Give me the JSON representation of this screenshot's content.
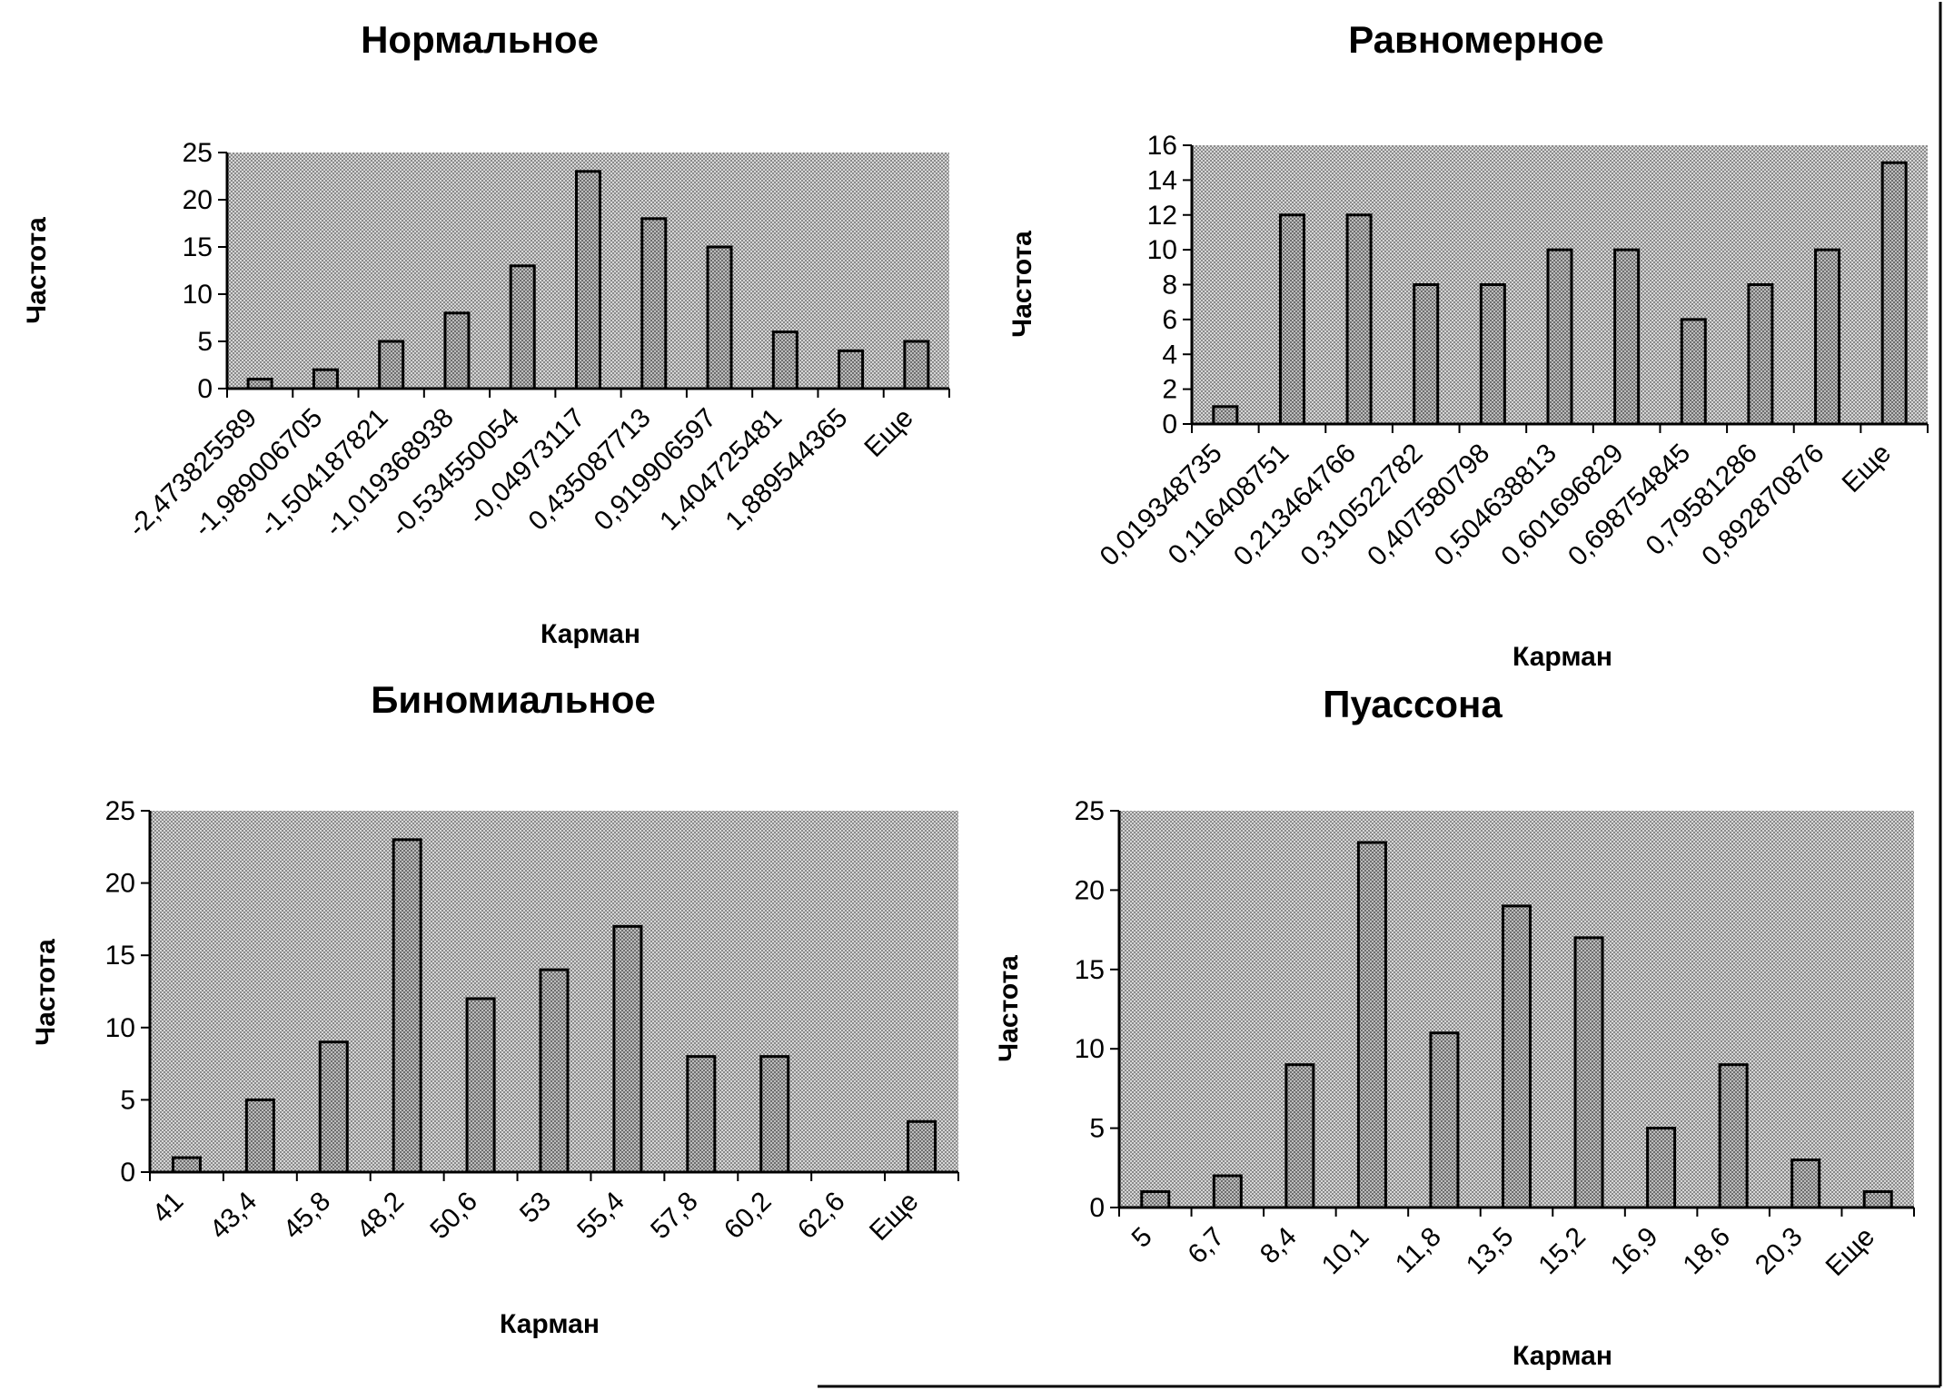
{
  "colors": {
    "plot_bg": "#c9c9c9",
    "bar_fill": "#a9a9a9",
    "stroke": "#000000"
  },
  "chart_data": [
    {
      "type": "bar",
      "title": "Нормальное",
      "xlabel": "Карман",
      "ylabel": "Частота",
      "ylim": [
        0,
        25
      ],
      "yticks": [
        "0",
        "5",
        "10",
        "15",
        "20",
        "25"
      ],
      "categories": [
        "-2,473825589",
        "-1,989006705",
        "-1,504187821",
        "-1,019368938",
        "-0,534550054",
        "-0,04973117",
        "0,435087713",
        "0,919906597",
        "1,404725481",
        "1,889544365",
        "Еще"
      ],
      "values": [
        1,
        2,
        5,
        8,
        13,
        23,
        18,
        15,
        6,
        4,
        5
      ]
    },
    {
      "type": "bar",
      "title": "Равномерное",
      "xlabel": "Карман",
      "ylabel": "Частота",
      "ylim": [
        0,
        16
      ],
      "yticks": [
        "0",
        "2",
        "4",
        "6",
        "8",
        "10",
        "12",
        "14",
        "16"
      ],
      "categories": [
        "0,019348735",
        "0,116408751",
        "0,213464766",
        "0,310522782",
        "0,407580798",
        "0,504638813",
        "0,601696829",
        "0,698754845",
        "0,79581286",
        "0,892870876",
        "Еще"
      ],
      "values": [
        1,
        12,
        12,
        8,
        8,
        10,
        10,
        6,
        8,
        10,
        15
      ]
    },
    {
      "type": "bar",
      "title": "Биномиальное",
      "xlabel": "Карман",
      "ylabel": "Частота",
      "ylim": [
        0,
        25
      ],
      "yticks": [
        "0",
        "5",
        "10",
        "15",
        "20",
        "25"
      ],
      "categories": [
        "41",
        "43,4",
        "45,8",
        "48,2",
        "50,6",
        "53",
        "55,4",
        "57,8",
        "60,2",
        "62,6",
        "Еще"
      ],
      "values": [
        1,
        5,
        9,
        23,
        12,
        14,
        17,
        8,
        8,
        0,
        3.5
      ]
    },
    {
      "type": "bar",
      "title": "Пуассона",
      "xlabel": "Карман",
      "ylabel": "Частота",
      "ylim": [
        0,
        25
      ],
      "yticks": [
        "0",
        "5",
        "10",
        "15",
        "20",
        "25"
      ],
      "categories": [
        "5",
        "6,7",
        "8,4",
        "10,1",
        "11,8",
        "13,5",
        "15,2",
        "16,9",
        "18,6",
        "20,3",
        "Еще"
      ],
      "values": [
        1,
        2,
        9,
        23,
        11,
        19,
        17,
        5,
        9,
        3,
        1
      ]
    }
  ]
}
